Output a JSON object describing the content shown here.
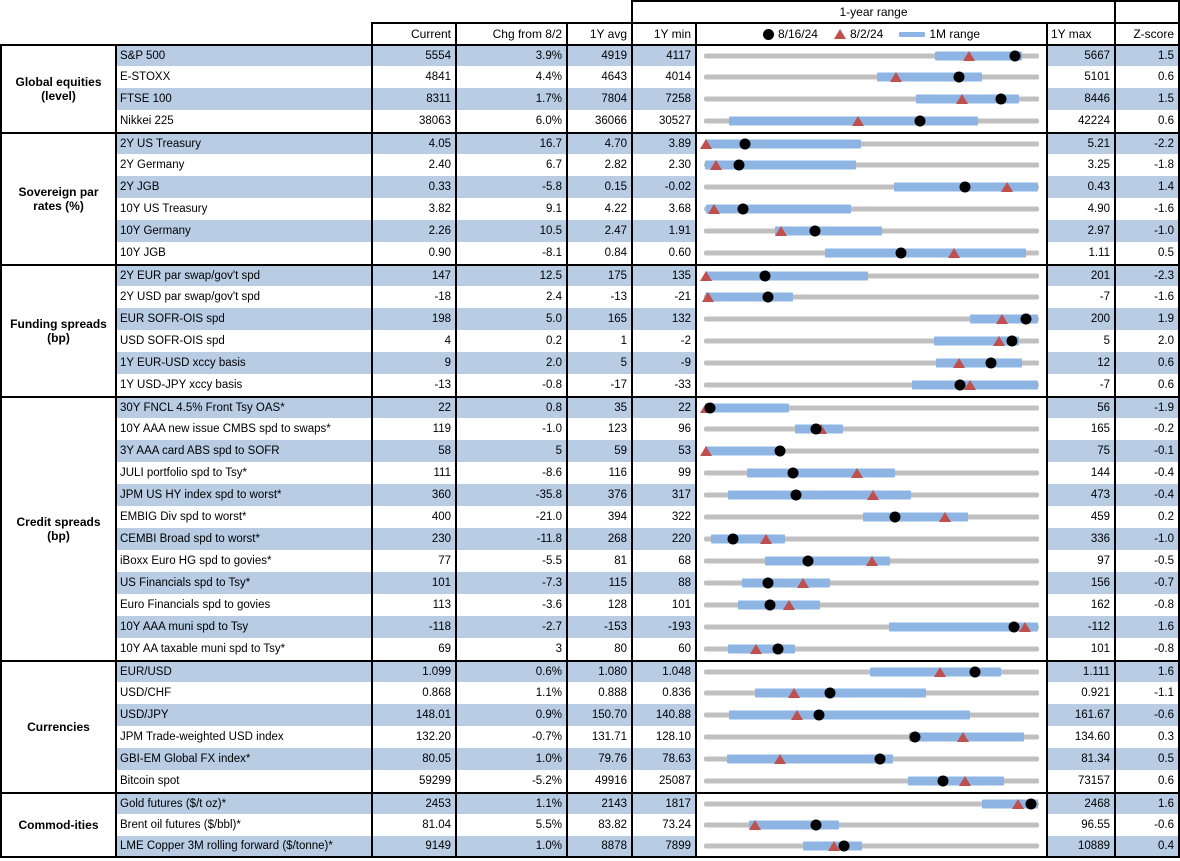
{
  "header": {
    "range_title": "1-year range",
    "columns": {
      "current": "Current",
      "chg": "Chg from 8/2",
      "avg": "1Y avg",
      "min": "1Y min",
      "max": "1Y max",
      "z": "Z-score"
    },
    "legend": [
      {
        "marker": "dot",
        "label": "8/16/24"
      },
      {
        "marker": "triangle",
        "label": "8/2/24"
      },
      {
        "marker": "bar",
        "label": "1M range"
      }
    ]
  },
  "colors": {
    "stripe": "#B8CCE4",
    "bar": "#8EB4E3",
    "triangle": "#C0504D",
    "track": "#C0C0C0",
    "dot": "#000000"
  },
  "chart_data": {
    "type": "table",
    "title": "1-year range",
    "description": "Market monitor table; each row shows Current, Chg from 8/2, 1Y avg, 1Y min, 1Y max, Z-score plus a bullet chart of the 1-year range (gray track), 1M range (blue bar), 8/2/24 level (red triangle) and 8/16/24 level (black dot). Marker positions are fractions of the 1Y min-max span.",
    "sections": [
      {
        "group": "Global equities (level)",
        "group_lines": [
          "Global equities",
          "(level)"
        ],
        "rows": [
          {
            "label": "S&P 500",
            "current": "5554",
            "chg": "3.9%",
            "avg": "4919",
            "min": "4117",
            "max": "5667",
            "z": "1.5",
            "bar": [
              0.69,
              0.95
            ],
            "tri": 0.79,
            "dot": 0.927
          },
          {
            "label": "E-STOXX",
            "current": "4841",
            "chg": "4.4%",
            "avg": "4643",
            "min": "4014",
            "max": "5101",
            "z": "0.6",
            "bar": [
              0.515,
              0.83
            ],
            "tri": 0.573,
            "dot": 0.761
          },
          {
            "label": "FTSE 100",
            "current": "8311",
            "chg": "1.7%",
            "avg": "7804",
            "min": "7258",
            "max": "8446",
            "z": "1.5",
            "bar": [
              0.633,
              0.94
            ],
            "tri": 0.769,
            "dot": 0.886
          },
          {
            "label": "Nikkei 225",
            "current": "38063",
            "chg": "6.0%",
            "avg": "36066",
            "min": "30527",
            "max": "42224",
            "z": "0.6",
            "bar": [
              0.076,
              0.818
            ],
            "tri": 0.46,
            "dot": 0.644
          }
        ]
      },
      {
        "group": "Sovereign par rates (%)",
        "group_lines": [
          "Sovereign par",
          "rates (%)"
        ],
        "rows": [
          {
            "label": "2Y US Treasury",
            "current": "4.05",
            "chg": "16.7",
            "avg": "4.70",
            "min": "3.89",
            "max": "5.21",
            "z": "-2.2",
            "bar": [
              0.004,
              0.47
            ],
            "tri": 0.006,
            "dot": 0.121
          },
          {
            "label": "2Y Germany",
            "current": "2.40",
            "chg": "6.7",
            "avg": "2.82",
            "min": "2.30",
            "max": "3.25",
            "z": "-1.8",
            "bar": [
              0.004,
              0.455
            ],
            "tri": 0.035,
            "dot": 0.105
          },
          {
            "label": "2Y JGB",
            "current": "0.33",
            "chg": "-5.8",
            "avg": "0.15",
            "min": "-0.02",
            "max": "0.43",
            "z": "1.4",
            "bar": [
              0.567,
              0.996
            ],
            "tri": 0.905,
            "dot": 0.778
          },
          {
            "label": "10Y US Treasury",
            "current": "3.82",
            "chg": "9.1",
            "avg": "4.22",
            "min": "3.68",
            "max": "4.90",
            "z": "-1.6",
            "bar": [
              0.006,
              0.44
            ],
            "tri": 0.03,
            "dot": 0.115
          },
          {
            "label": "10Y Germany",
            "current": "2.26",
            "chg": "10.5",
            "avg": "2.47",
            "min": "1.91",
            "max": "2.97",
            "z": "-1.0",
            "bar": [
              0.212,
              0.531
            ],
            "tri": 0.231,
            "dot": 0.33
          },
          {
            "label": "10Y JGB",
            "current": "0.90",
            "chg": "-8.1",
            "avg": "0.84",
            "min": "0.60",
            "max": "1.11",
            "z": "0.5",
            "bar": [
              0.36,
              0.96
            ],
            "tri": 0.747,
            "dot": 0.588
          }
        ]
      },
      {
        "group": "Funding spreads (bp)",
        "group_lines": [
          "Funding spreads",
          "(bp)"
        ],
        "rows": [
          {
            "label": "2Y EUR par swap/gov't spd",
            "current": "147",
            "chg": "12.5",
            "avg": "175",
            "min": "135",
            "max": "201",
            "z": "-2.3",
            "bar": [
              0.004,
              0.49
            ],
            "tri": 0.006,
            "dot": 0.182
          },
          {
            "label": "2Y USD par swap/gov't spd",
            "current": "-18",
            "chg": "2.4",
            "avg": "-13",
            "min": "-21",
            "max": "-7",
            "z": "-1.6",
            "bar": [
              0.004,
              0.267
            ],
            "tri": 0.012,
            "dot": 0.19
          },
          {
            "label": "EUR SOFR-OIS spd",
            "current": "198",
            "chg": "5.0",
            "avg": "165",
            "min": "132",
            "max": "200",
            "z": "1.9",
            "bar": [
              0.794,
              0.996
            ],
            "tri": 0.89,
            "dot": 0.96
          },
          {
            "label": "USD SOFR-OIS spd",
            "current": "4",
            "chg": "0.2",
            "avg": "1",
            "min": "-2",
            "max": "5",
            "z": "2.0",
            "bar": [
              0.688,
              0.94
            ],
            "tri": 0.88,
            "dot": 0.92
          },
          {
            "label": "1Y EUR-USD xccy basis",
            "current": "9",
            "chg": "2.0",
            "avg": "5",
            "min": "-9",
            "max": "12",
            "z": "0.6",
            "bar": [
              0.694,
              0.95
            ],
            "tri": 0.76,
            "dot": 0.857
          },
          {
            "label": "1Y USD-JPY xccy basis",
            "current": "-13",
            "chg": "-0.8",
            "avg": "-17",
            "min": "-33",
            "max": "-7",
            "z": "0.6",
            "bar": [
              0.621,
              0.996
            ],
            "tri": 0.795,
            "dot": 0.765
          }
        ]
      },
      {
        "group": "Credit spreads (bp)",
        "group_lines": [
          "Credit spreads",
          "(bp)"
        ],
        "rows": [
          {
            "label": "30Y FNCL 4.5% Front Tsy OAS*",
            "current": "22",
            "chg": "0.8",
            "avg": "35",
            "min": "22",
            "max": "56",
            "z": "-1.9",
            "bar": [
              0.004,
              0.255
            ],
            "tri": 0.005,
            "dot": 0.018
          },
          {
            "label": "10Y AAA new issue CMBS spd to swaps*",
            "current": "119",
            "chg": "-1.0",
            "avg": "123",
            "min": "96",
            "max": "165",
            "z": "-0.2",
            "bar": [
              0.272,
              0.415
            ],
            "tri": 0.348,
            "dot": 0.333
          },
          {
            "label": "3Y AAA card ABS spd to SOFR",
            "current": "58",
            "chg": "5",
            "avg": "59",
            "min": "53",
            "max": "75",
            "z": "-0.1",
            "bar": [
              0.004,
              0.215
            ],
            "tri": 0.005,
            "dot": 0.227
          },
          {
            "label": "JULI portfolio spd to Tsy*",
            "current": "111",
            "chg": "-8.6",
            "avg": "116",
            "min": "99",
            "max": "144",
            "z": "-0.4",
            "bar": [
              0.127,
              0.57
            ],
            "tri": 0.458,
            "dot": 0.267
          },
          {
            "label": "JPM US HY index spd to worst*",
            "current": "360",
            "chg": "-35.8",
            "avg": "376",
            "min": "317",
            "max": "473",
            "z": "-0.4",
            "bar": [
              0.072,
              0.618
            ],
            "tri": 0.505,
            "dot": 0.276
          },
          {
            "label": "EMBIG Div spd to worst*",
            "current": "400",
            "chg": "-21.0",
            "avg": "394",
            "min": "322",
            "max": "459",
            "z": "0.2",
            "bar": [
              0.476,
              0.788
            ],
            "tri": 0.72,
            "dot": 0.569
          },
          {
            "label": "CEMBI Broad spd to worst*",
            "current": "230",
            "chg": "-11.8",
            "avg": "268",
            "min": "220",
            "max": "336",
            "z": "-1.0",
            "bar": [
              0.021,
              0.242
            ],
            "tri": 0.185,
            "dot": 0.086
          },
          {
            "label": "iBoxx Euro HG spd to govies*",
            "current": "77",
            "chg": "-5.5",
            "avg": "81",
            "min": "68",
            "max": "97",
            "z": "-0.5",
            "bar": [
              0.182,
              0.555
            ],
            "tri": 0.5,
            "dot": 0.31
          },
          {
            "label": "US Financials spd to Tsy*",
            "current": "101",
            "chg": "-7.3",
            "avg": "115",
            "min": "88",
            "max": "156",
            "z": "-0.7",
            "bar": [
              0.112,
              0.376
            ],
            "tri": 0.295,
            "dot": 0.19
          },
          {
            "label": "Euro Financials spd to govies",
            "current": "113",
            "chg": "-3.6",
            "avg": "128",
            "min": "101",
            "max": "162",
            "z": "-0.8",
            "bar": [
              0.1,
              0.345
            ],
            "tri": 0.255,
            "dot": 0.197
          },
          {
            "label": "10Y AAA muni spd to Tsy",
            "current": "-118",
            "chg": "-2.7",
            "avg": "-153",
            "min": "-193",
            "max": "-112",
            "z": "1.6",
            "bar": [
              0.552,
              0.996
            ],
            "tri": 0.958,
            "dot": 0.925
          },
          {
            "label": "10Y AA taxable muni spd to Tsy*",
            "current": "69",
            "chg": "3",
            "avg": "80",
            "min": "60",
            "max": "101",
            "z": "-0.8",
            "bar": [
              0.072,
              0.273
            ],
            "tri": 0.155,
            "dot": 0.222
          }
        ]
      },
      {
        "group": "Currencies",
        "group_lines": [
          "Currencies"
        ],
        "rows": [
          {
            "label": "EUR/USD",
            "current": "1.099",
            "chg": "0.6%",
            "avg": "1.080",
            "min": "1.048",
            "max": "1.111",
            "z": "1.6",
            "bar": [
              0.497,
              0.888
            ],
            "tri": 0.704,
            "dot": 0.81
          },
          {
            "label": "USD/CHF",
            "current": "0.868",
            "chg": "1.1%",
            "avg": "0.888",
            "min": "0.836",
            "max": "0.921",
            "z": "-1.1",
            "bar": [
              0.152,
              0.664
            ],
            "tri": 0.268,
            "dot": 0.377
          },
          {
            "label": "USD/JPY",
            "current": "148.01",
            "chg": "0.9%",
            "avg": "150.70",
            "min": "140.88",
            "max": "161.67",
            "z": "-0.6",
            "bar": [
              0.076,
              0.794
            ],
            "tri": 0.278,
            "dot": 0.343
          },
          {
            "label": "JPM Trade-weighted USD index",
            "current": "132.20",
            "chg": "-0.7%",
            "avg": "131.71",
            "min": "128.10",
            "max": "134.60",
            "z": "0.3",
            "bar": [
              0.612,
              0.955
            ],
            "tri": 0.772,
            "dot": 0.631
          },
          {
            "label": "GBI-EM Global FX index*",
            "current": "80.05",
            "chg": "1.0%",
            "avg": "79.76",
            "min": "78.63",
            "max": "81.34",
            "z": "0.5",
            "bar": [
              0.07,
              0.564
            ],
            "tri": 0.228,
            "dot": 0.524
          },
          {
            "label": "Bitcoin spot",
            "current": "59299",
            "chg": "-5.2%",
            "avg": "49916",
            "min": "25087",
            "max": "73157",
            "z": "0.6",
            "bar": [
              0.609,
              0.897
            ],
            "tri": 0.779,
            "dot": 0.712
          }
        ]
      },
      {
        "group": "Commod-ities",
        "group_lines": [
          "Commod-ities"
        ],
        "rows": [
          {
            "label": "Gold futures ($/t oz)*",
            "current": "2453",
            "chg": "1.1%",
            "avg": "2143",
            "min": "1817",
            "max": "2468",
            "z": "1.6",
            "bar": [
              0.83,
              0.996
            ],
            "tri": 0.936,
            "dot": 0.977
          },
          {
            "label": "Brent oil futures ($/bbl)*",
            "current": "81.04",
            "chg": "5.5%",
            "avg": "83.82",
            "min": "73.24",
            "max": "96.55",
            "z": "-0.6",
            "bar": [
              0.133,
              0.403
            ],
            "tri": 0.153,
            "dot": 0.334
          },
          {
            "label": "LME Copper 3M rolling forward ($/tonne)*",
            "current": "9149",
            "chg": "1.0%",
            "avg": "8878",
            "min": "7899",
            "max": "10889",
            "z": "0.4",
            "bar": [
              0.297,
              0.473
            ],
            "tri": 0.387,
            "dot": 0.417
          }
        ]
      }
    ]
  }
}
